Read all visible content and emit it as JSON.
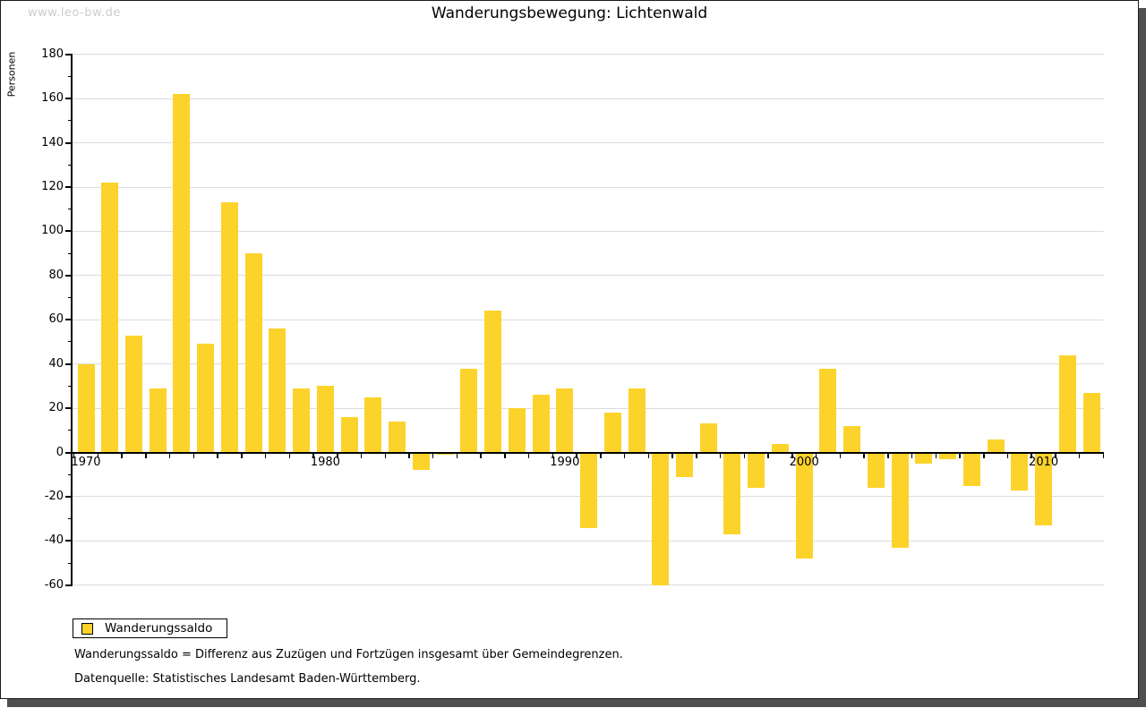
{
  "watermark": "www.leo-bw.de",
  "chart_data": {
    "type": "bar",
    "title": "Wanderungsbewegung: Lichtenwald",
    "xlabel": "",
    "ylabel": "Personen",
    "ylim": [
      -60,
      180
    ],
    "grid": true,
    "bar_color": "#fcd32b",
    "grid_color": "#dcdcdc",
    "axis_color": "#000000",
    "yticks": [
      -60,
      -40,
      -20,
      0,
      20,
      40,
      60,
      80,
      100,
      120,
      140,
      160,
      180
    ],
    "yminorticks": [
      -50,
      -30,
      -10,
      10,
      30,
      50,
      70,
      90,
      110,
      130,
      150,
      170
    ],
    "xticks": [
      1970,
      1980,
      1990,
      2000,
      2010
    ],
    "legend_position": "bottom-left",
    "x": [
      1970,
      1971,
      1972,
      1973,
      1974,
      1975,
      1976,
      1977,
      1978,
      1979,
      1980,
      1981,
      1982,
      1983,
      1984,
      1985,
      1986,
      1987,
      1988,
      1989,
      1990,
      1991,
      1992,
      1993,
      1994,
      1995,
      1996,
      1997,
      1998,
      1999,
      2000,
      2001,
      2002,
      2003,
      2004,
      2005,
      2006,
      2007,
      2008,
      2009,
      2010,
      2011,
      2012
    ],
    "series": [
      {
        "name": "Wanderungssaldo",
        "values": [
          40,
          122,
          53,
          29,
          162,
          49,
          113,
          90,
          56,
          29,
          30,
          16,
          25,
          14,
          -8,
          -1,
          38,
          64,
          20,
          26,
          29,
          -34,
          18,
          29,
          -60,
          -11,
          13,
          -37,
          -16,
          4,
          -48,
          38,
          12,
          -16,
          -43,
          -5,
          -3,
          -15,
          6,
          -17,
          -33,
          44,
          27
        ]
      }
    ]
  },
  "footnotes": [
    "Wanderungssaldo = Differenz aus Zuzügen und Fortzügen insgesamt über Gemeindegrenzen.",
    "Datenquelle: Statistisches Landesamt Baden-Württemberg."
  ]
}
